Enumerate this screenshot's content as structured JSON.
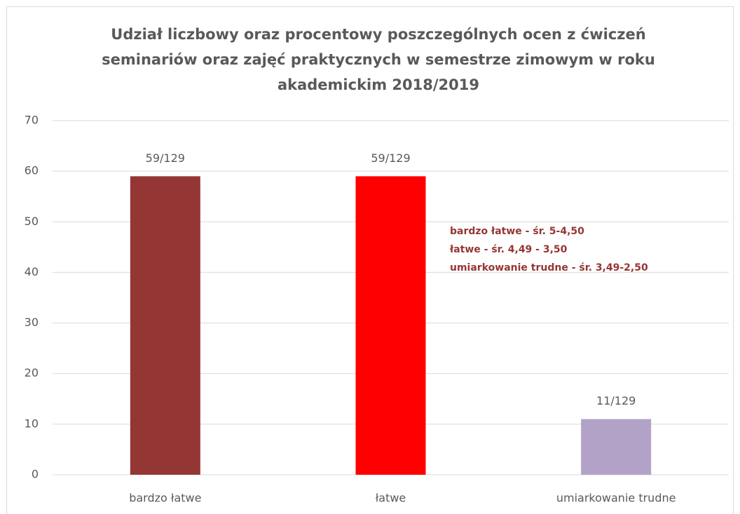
{
  "chart_data": {
    "type": "bar",
    "title": [
      "Udział liczbowy oraz procentowy poszczególnych ocen z ćwiczeń",
      "seminariów  oraz zajęć praktycznych w semestrze zimowym w roku",
      "akademickim 2018/2019"
    ],
    "categories": [
      "bardzo łatwe",
      "łatwe",
      "umiarkowanie trudne"
    ],
    "values": [
      59,
      59,
      11
    ],
    "value_labels": [
      "59/129",
      "59/129",
      "11/129"
    ],
    "colors": [
      "#943634",
      "#ff0000",
      "#b3a2c7"
    ],
    "annotations": [
      "bardzo łatwe - śr. 5-4,50",
      "łatwe - śr. 4,49 - 3,50",
      "umiarkowanie trudne - śr. 3,49-2,50"
    ],
    "annotation_color": "#953735",
    "ylim": [
      0,
      70
    ],
    "yticks": [
      0,
      10,
      20,
      30,
      40,
      50,
      60,
      70
    ],
    "grid": true
  }
}
